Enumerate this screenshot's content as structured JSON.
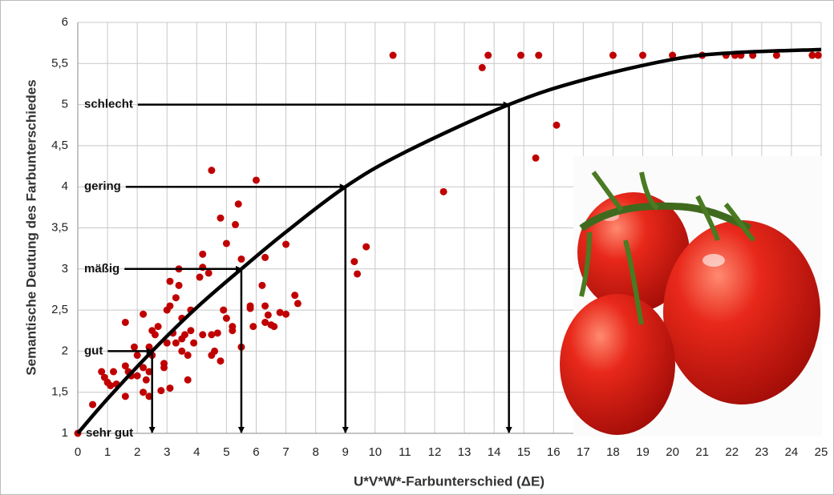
{
  "chart_data": {
    "type": "scatter",
    "xlabel": "U*V*W*-Farbunterschied (ΔE)",
    "ylabel": "Semantische Deutung des Farbunterschiedes",
    "xlim": [
      0,
      25
    ],
    "ylim": [
      1,
      6
    ],
    "xticks": [
      0,
      1,
      2,
      3,
      4,
      5,
      6,
      7,
      8,
      9,
      10,
      11,
      12,
      13,
      14,
      15,
      16,
      17,
      18,
      19,
      20,
      21,
      22,
      23,
      24,
      25
    ],
    "yticks": [
      1,
      {
        "value": 1.5,
        "label": "1,5"
      },
      2,
      {
        "value": 2.5,
        "label": "2,5"
      },
      3,
      {
        "value": 3.5,
        "label": "3,5"
      },
      4,
      {
        "value": 4.5,
        "label": "4,5"
      },
      5,
      {
        "value": 5.5,
        "label": "5,5"
      },
      6
    ],
    "grid": true,
    "scatter": {
      "color": "#c00000",
      "x": [
        10.6,
        13.6,
        13.8,
        14.9,
        15.5,
        18,
        19,
        20,
        21,
        21.8,
        22.1,
        22.3,
        22.7,
        23.5,
        24.7,
        24.9,
        16.1,
        15.4,
        12.3,
        9.3,
        9.4,
        9.7,
        6,
        4.5,
        5.4,
        4.8,
        5.3,
        5,
        5.5,
        6.3,
        7,
        7.3,
        7.4,
        6.8,
        7,
        6.2,
        6.3,
        6.4,
        6.3,
        6.5,
        6.6,
        5.9,
        5.8,
        5.8,
        5.2,
        5.2,
        5.5,
        4.9,
        5,
        4.7,
        4.5,
        4.6,
        4.5,
        4.8,
        4.2,
        4.2,
        4.2,
        4.1,
        4.4,
        3.8,
        3.8,
        3.6,
        3.4,
        3.3,
        3.4,
        3.1,
        3,
        3.1,
        3.2,
        3.3,
        3.5,
        3.5,
        3.7,
        3.7,
        3.1,
        2.9,
        2.7,
        2.6,
        2.5,
        2.4,
        2.5,
        2.4,
        2.2,
        2.2,
        2.4,
        2,
        2,
        1.8,
        1.7,
        1.6,
        1.6,
        1.6,
        1.9,
        2.2,
        2.8,
        1.3,
        1.2,
        1.1,
        1,
        0.9,
        0.8,
        0.5,
        0,
        3,
        2.9,
        3.5,
        3.9,
        2.3
      ],
      "values": [
        5.6,
        5.45,
        5.6,
        5.6,
        5.6,
        5.6,
        5.6,
        5.6,
        5.6,
        5.6,
        5.6,
        5.6,
        5.6,
        5.6,
        5.6,
        5.6,
        4.75,
        4.35,
        3.94,
        3.09,
        2.94,
        3.27,
        4.08,
        4.2,
        3.79,
        3.62,
        3.54,
        3.31,
        3.12,
        3.14,
        3.3,
        2.68,
        2.58,
        2.47,
        2.45,
        2.8,
        2.55,
        2.44,
        2.35,
        2.32,
        2.3,
        2.3,
        2.55,
        2.52,
        2.3,
        2.25,
        2.05,
        2.5,
        2.4,
        2.22,
        2.2,
        2,
        1.95,
        1.88,
        2.2,
        3.18,
        3.02,
        2.9,
        2.95,
        2.5,
        2.25,
        2.2,
        3,
        2.65,
        2.8,
        2.85,
        2.5,
        2.55,
        2.22,
        2.1,
        2,
        2.15,
        1.95,
        1.65,
        1.55,
        1.8,
        2.3,
        2.2,
        2.25,
        2.05,
        1.95,
        1.75,
        1.8,
        1.5,
        1.45,
        1.95,
        1.7,
        1.7,
        1.75,
        1.82,
        1.45,
        2.35,
        2.05,
        2.45,
        1.52,
        1.6,
        1.75,
        1.58,
        1.62,
        1.68,
        1.75,
        1.35,
        1,
        2.1,
        1.85,
        2.4,
        2.1,
        1.65
      ]
    },
    "curve": {
      "color": "#000000",
      "x": [
        0,
        1,
        2.5,
        4,
        5.5,
        7,
        9,
        11,
        14.5,
        17,
        20,
        22,
        25
      ],
      "values": [
        1,
        1.42,
        2,
        2.53,
        3,
        3.45,
        4,
        4.42,
        5,
        5.3,
        5.55,
        5.63,
        5.67
      ]
    },
    "annotations": [
      {
        "text": "schlecht",
        "x": 14.5,
        "y": 5,
        "arrow": true
      },
      {
        "text": "gering",
        "x": 9,
        "y": 4,
        "arrow": true
      },
      {
        "text": "mäßig",
        "x": 5.5,
        "y": 3,
        "arrow": true
      },
      {
        "text": "gut",
        "x": 2.5,
        "y": 2,
        "arrow": true
      },
      {
        "text": "sehr gut",
        "x": 0,
        "y": 1,
        "arrow": false
      }
    ]
  }
}
